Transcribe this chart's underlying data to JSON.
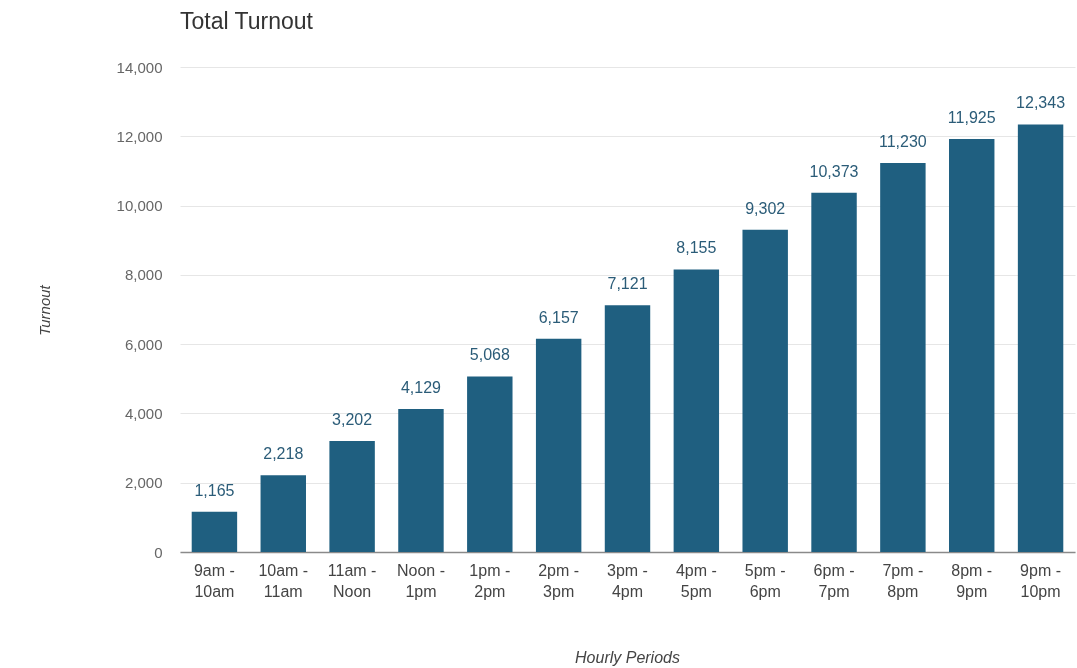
{
  "chart_data": {
    "type": "bar",
    "title": "Total Turnout",
    "xlabel": "Hourly Periods",
    "ylabel": "Turnout",
    "categories": [
      "9am - 10am",
      "10am - 11am",
      "11am - Noon",
      "Noon - 1pm",
      "1pm - 2pm",
      "2pm - 3pm",
      "3pm - 4pm",
      "4pm - 5pm",
      "5pm - 6pm",
      "6pm - 7pm",
      "7pm - 8pm",
      "8pm - 9pm",
      "9pm - 10pm"
    ],
    "values": [
      1165,
      2218,
      3202,
      4129,
      5068,
      6157,
      7121,
      8155,
      9302,
      10373,
      11230,
      11925,
      12343
    ],
    "value_labels": [
      "1,165",
      "2,218",
      "3,202",
      "4,129",
      "5,068",
      "6,157",
      "7,121",
      "8,155",
      "9,302",
      "10,373",
      "11,230",
      "11,925",
      "12,343"
    ],
    "color": "#1f5f80",
    "ylim": [
      0,
      14000
    ],
    "yticks": [
      0,
      {
        "value": 2000,
        "label": "2,000"
      },
      {
        "value": 4000,
        "label": "4,000"
      },
      {
        "value": 6000,
        "label": "6,000"
      },
      {
        "value": 8000,
        "label": "8,000"
      },
      {
        "value": 10000,
        "label": "10,000"
      },
      {
        "value": 12000,
        "label": "12,000"
      },
      {
        "value": 14000,
        "label": "14,000"
      }
    ],
    "grid": "y"
  }
}
